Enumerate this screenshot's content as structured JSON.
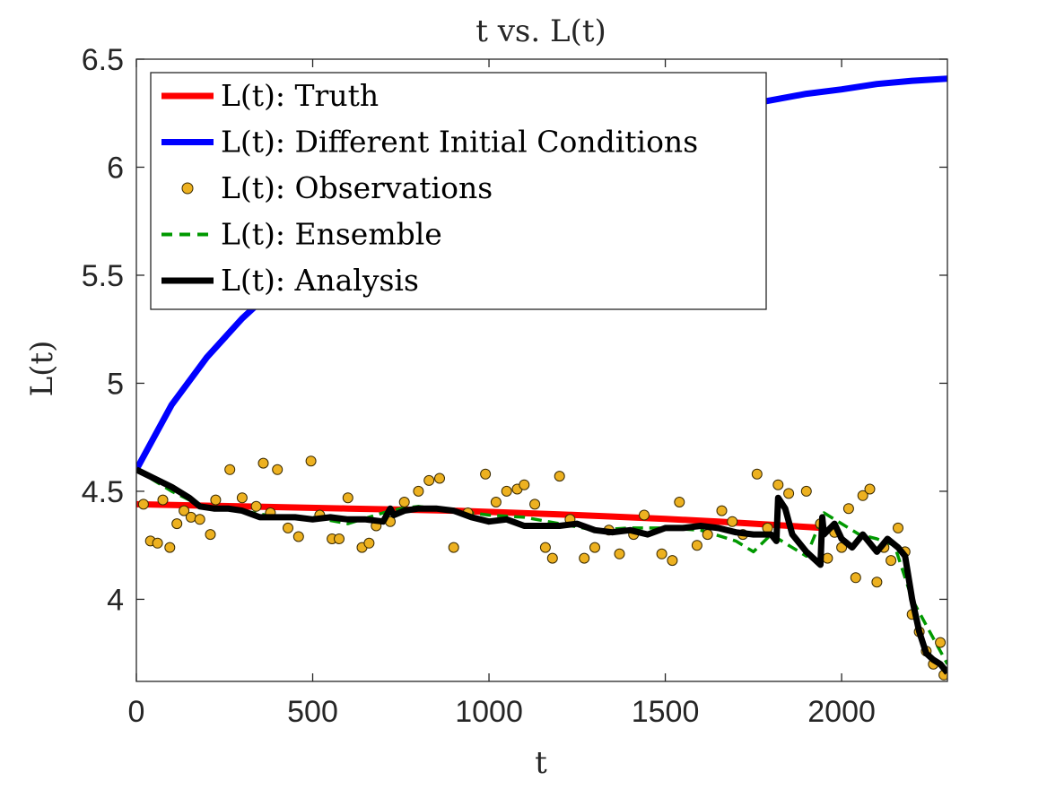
{
  "chart_data": {
    "type": "line",
    "title": "t vs. L(t)",
    "xlabel": "t",
    "ylabel": "L(t)",
    "xlim": [
      0,
      2300
    ],
    "ylim": [
      3.62,
      6.5
    ],
    "xticks": [
      0,
      500,
      1000,
      1500,
      2000
    ],
    "xtick_labels": [
      "0",
      "500",
      "1000",
      "1500",
      "2000"
    ],
    "yticks": [
      4,
      4.5,
      5,
      5.5,
      6,
      6.5
    ],
    "ytick_labels": [
      "4",
      "4.5",
      "5",
      "5.5",
      "6",
      "6.5"
    ],
    "grid": false,
    "legend_position": "top-left",
    "series": [
      {
        "name": "L(t): Truth",
        "style": "solid",
        "color": "#ff0000",
        "x": [
          0,
          150,
          300,
          450,
          600,
          750,
          900,
          1050,
          1200,
          1350,
          1500,
          1650,
          1800,
          1950
        ],
        "y": [
          4.44,
          4.435,
          4.43,
          4.425,
          4.42,
          4.415,
          4.41,
          4.402,
          4.393,
          4.383,
          4.372,
          4.36,
          4.345,
          4.33
        ]
      },
      {
        "name": "L(t): Different Initial Conditions",
        "style": "solid",
        "color": "#0000ff",
        "x": [
          0,
          100,
          200,
          300,
          400,
          500,
          600,
          700,
          800,
          900,
          1000,
          1100,
          1200,
          1300,
          1400,
          1500,
          1600,
          1700,
          1800,
          1900,
          2000,
          2100,
          2200,
          2300
        ],
        "y": [
          4.6,
          4.9,
          5.12,
          5.3,
          5.45,
          5.58,
          5.69,
          5.78,
          5.86,
          5.93,
          5.99,
          6.05,
          6.1,
          6.14,
          6.18,
          6.22,
          6.25,
          6.28,
          6.31,
          6.34,
          6.36,
          6.385,
          6.4,
          6.41
        ]
      },
      {
        "name": "L(t): Observations",
        "style": "markers",
        "color": "#edb120",
        "x": [
          20,
          40,
          60,
          75,
          95,
          115,
          135,
          155,
          180,
          210,
          225,
          265,
          300,
          340,
          360,
          380,
          400,
          430,
          460,
          495,
          520,
          555,
          575,
          600,
          640,
          660,
          680,
          720,
          760,
          800,
          830,
          860,
          900,
          940,
          990,
          1020,
          1050,
          1080,
          1100,
          1130,
          1160,
          1180,
          1200,
          1230,
          1270,
          1300,
          1340,
          1370,
          1410,
          1440,
          1490,
          1520,
          1540,
          1590,
          1620,
          1660,
          1690,
          1720,
          1760,
          1790,
          1820,
          1850,
          1900,
          1940,
          1960,
          1980,
          2000,
          2020,
          2040,
          2060,
          2080,
          2100,
          2120,
          2140,
          2160,
          2180,
          2200,
          2220,
          2240,
          2260,
          2280,
          2290
        ],
        "y": [
          4.44,
          4.27,
          4.26,
          4.46,
          4.24,
          4.35,
          4.41,
          4.38,
          4.37,
          4.3,
          4.46,
          4.6,
          4.47,
          4.43,
          4.63,
          4.4,
          4.6,
          4.33,
          4.29,
          4.64,
          4.39,
          4.28,
          4.28,
          4.47,
          4.24,
          4.26,
          4.34,
          4.36,
          4.45,
          4.5,
          4.55,
          4.56,
          4.24,
          4.4,
          4.58,
          4.45,
          4.5,
          4.51,
          4.53,
          4.44,
          4.24,
          4.19,
          4.57,
          4.37,
          4.19,
          4.24,
          4.32,
          4.21,
          4.3,
          4.39,
          4.21,
          4.18,
          4.45,
          4.25,
          4.3,
          4.41,
          4.36,
          4.3,
          4.58,
          4.33,
          4.53,
          4.49,
          4.5,
          4.35,
          4.19,
          4.31,
          4.24,
          4.42,
          4.1,
          4.48,
          4.51,
          4.08,
          4.24,
          4.18,
          4.33,
          4.22,
          3.93,
          3.85,
          3.76,
          3.7,
          3.8,
          3.65
        ]
      },
      {
        "name": "L(t): Ensemble",
        "style": "dashed",
        "color": "#009900",
        "x": [
          0,
          100,
          200,
          300,
          400,
          500,
          600,
          700,
          750,
          800,
          900,
          1000,
          1100,
          1200,
          1300,
          1400,
          1500,
          1600,
          1700,
          1750,
          1800,
          1850,
          1900,
          1950,
          2000,
          2050,
          2100,
          2150,
          2200,
          2250,
          2300
        ],
        "y": [
          4.6,
          4.5,
          4.42,
          4.41,
          4.38,
          4.38,
          4.35,
          4.4,
          4.42,
          4.43,
          4.41,
          4.39,
          4.38,
          4.35,
          4.32,
          4.33,
          4.33,
          4.32,
          4.27,
          4.22,
          4.3,
          4.25,
          4.2,
          4.4,
          4.35,
          4.3,
          4.28,
          4.25,
          4.0,
          3.85,
          3.7
        ]
      },
      {
        "name": "L(t): Analysis",
        "style": "solid",
        "color": "#000000",
        "x": [
          0,
          50,
          100,
          150,
          180,
          220,
          260,
          300,
          350,
          400,
          450,
          500,
          550,
          600,
          650,
          700,
          720,
          730,
          760,
          800,
          850,
          900,
          950,
          1000,
          1050,
          1100,
          1150,
          1200,
          1250,
          1300,
          1350,
          1400,
          1450,
          1500,
          1550,
          1600,
          1650,
          1700,
          1750,
          1800,
          1815,
          1820,
          1840,
          1860,
          1900,
          1940,
          1945,
          1950,
          1980,
          2000,
          2030,
          2060,
          2100,
          2130,
          2160,
          2180,
          2200,
          2220,
          2240,
          2260,
          2280,
          2300
        ],
        "y": [
          4.6,
          4.56,
          4.52,
          4.47,
          4.43,
          4.42,
          4.42,
          4.41,
          4.38,
          4.38,
          4.38,
          4.37,
          4.38,
          4.37,
          4.37,
          4.36,
          4.42,
          4.39,
          4.41,
          4.42,
          4.42,
          4.41,
          4.38,
          4.36,
          4.37,
          4.34,
          4.34,
          4.34,
          4.35,
          4.32,
          4.31,
          4.32,
          4.3,
          4.33,
          4.33,
          4.34,
          4.33,
          4.31,
          4.3,
          4.3,
          4.27,
          4.47,
          4.42,
          4.3,
          4.22,
          4.16,
          4.38,
          4.3,
          4.35,
          4.28,
          4.24,
          4.3,
          4.22,
          4.28,
          4.24,
          4.2,
          4.0,
          3.85,
          3.75,
          3.72,
          3.7,
          3.66
        ]
      }
    ]
  }
}
